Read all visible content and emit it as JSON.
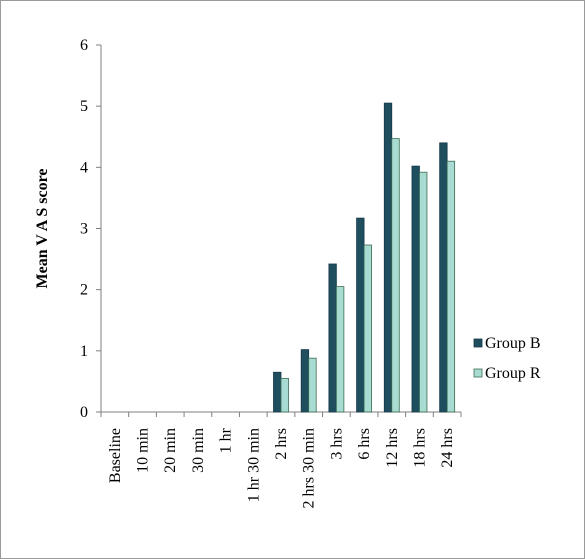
{
  "chart_data": {
    "type": "bar",
    "categories": [
      "Baseline",
      "10 min",
      "20 min",
      "30 min",
      "1 hr",
      "1 hr 30 min",
      "2 hrs",
      "2 hrs 30 min",
      "3 hrs",
      "6 hrs",
      "12 hrs",
      "18 hrs",
      "24 hrs"
    ],
    "series": [
      {
        "name": "Group B",
        "color": "#1f4e5f",
        "values": [
          0,
          0,
          0,
          0,
          0,
          0,
          0.65,
          1.02,
          2.42,
          3.17,
          5.05,
          4.02,
          4.4
        ]
      },
      {
        "name": "Group R",
        "color": "#a8dcd2",
        "values": [
          0,
          0,
          0,
          0,
          0,
          0,
          0.55,
          0.88,
          2.05,
          2.73,
          4.47,
          3.92,
          4.1
        ]
      }
    ],
    "title": "",
    "xlabel": "",
    "ylabel": "Mean V A S score",
    "ylim": [
      0,
      6
    ],
    "yticks": [
      0,
      1,
      2,
      3,
      4,
      5,
      6
    ],
    "grid": false,
    "legend_position": "right",
    "legend": [
      "Group B",
      "Group R"
    ]
  }
}
